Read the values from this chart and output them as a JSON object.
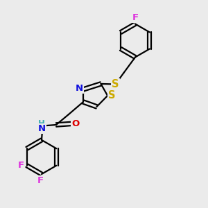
{
  "bg_color": "#ebebeb",
  "atom_colors": {
    "C": "#000000",
    "H": "#40b0b0",
    "N": "#1010dd",
    "O": "#dd0000",
    "F": "#dd30dd",
    "S": "#ccaa00"
  },
  "bond_color": "#000000",
  "figsize": [
    3.0,
    3.0
  ],
  "dpi": 100,
  "lw": 1.6,
  "fs": 9.5
}
